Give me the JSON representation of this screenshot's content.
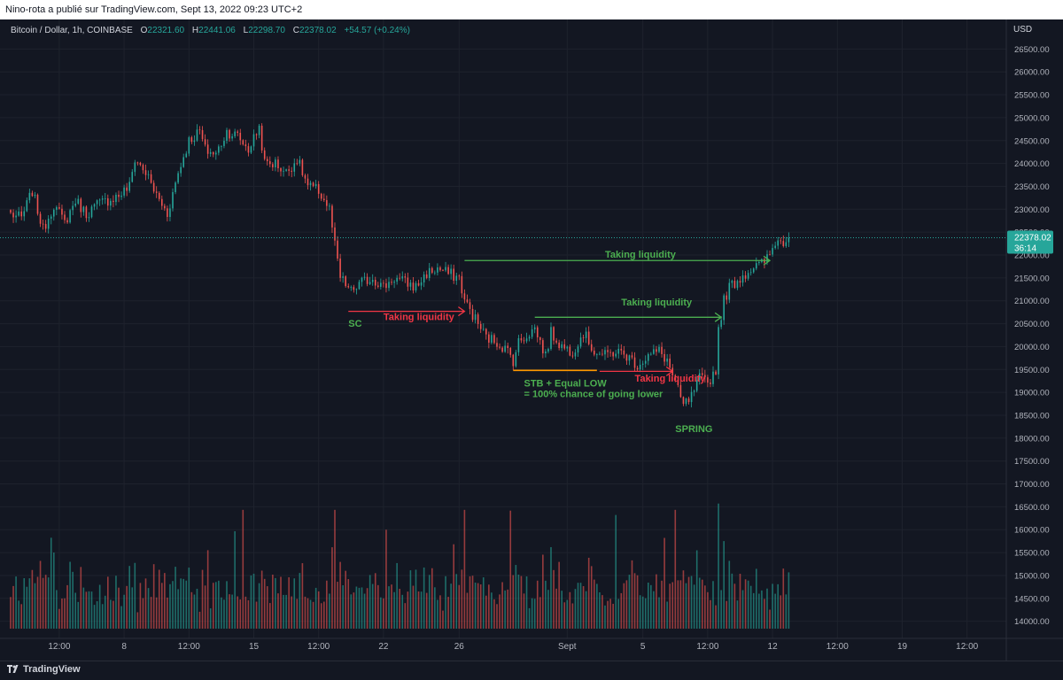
{
  "header": {
    "publisher": "Nino-rota a publié sur TradingView.com, Sept 13, 2022 09:23 UTC+2"
  },
  "symbol": {
    "name": "Bitcoin / Dollar, 1h, COINBASE",
    "open_label": "O",
    "open": "22321.60",
    "high_label": "H",
    "high": "22441.06",
    "low_label": "L",
    "low": "22298.70",
    "close_label": "C",
    "close": "22378.02",
    "change": "+54.57 (+0.24%)"
  },
  "price_tag": {
    "price": "22378.02",
    "countdown": "36:14"
  },
  "footer": {
    "brand": "TradingView"
  },
  "colors": {
    "up": "#26a69a",
    "down": "#ef5350",
    "green_ann": "#4caf50",
    "red_ann": "#f23645",
    "orange": "#ff9800",
    "bg": "#131722"
  },
  "chart_data": {
    "type": "candlestick",
    "currency_label": "USD",
    "ylim": [
      13800,
      26700
    ],
    "y_ticks": [
      14000,
      14500,
      15000,
      15500,
      16000,
      16500,
      17000,
      17500,
      18000,
      18500,
      19000,
      19500,
      20000,
      20500,
      21000,
      21500,
      22000,
      22500,
      23000,
      23500,
      24000,
      24500,
      25000,
      25500,
      26000,
      26500
    ],
    "y_tick_labels": [
      "14000.00",
      "14500.00",
      "15000.00",
      "15500.00",
      "16000.00",
      "16500.00",
      "17000.00",
      "17500.00",
      "18000.00",
      "18500.00",
      "19000.00",
      "19500.00",
      "20000.00",
      "20500.00",
      "21000.00",
      "21500.00",
      "22000.00",
      "22500.00",
      "23000.00",
      "23500.00",
      "24000.00",
      "24500.00",
      "25000.00",
      "25500.00",
      "26000.00",
      "26500.00"
    ],
    "x_ticks": [
      {
        "label": "12:00",
        "bar": 18
      },
      {
        "label": "8",
        "bar": 42
      },
      {
        "label": "12:00",
        "bar": 66
      },
      {
        "label": "15",
        "bar": 90
      },
      {
        "label": "12:00",
        "bar": 114
      },
      {
        "label": "22",
        "bar": 138
      },
      {
        "label": "26",
        "bar": 166
      },
      {
        "label": "Sept",
        "bar": 206
      },
      {
        "label": "5",
        "bar": 234
      },
      {
        "label": "12:00",
        "bar": 258
      },
      {
        "label": "12",
        "bar": 282
      },
      {
        "label": "12:00",
        "bar": 306
      },
      {
        "label": "19",
        "bar": 330
      },
      {
        "label": "12:00",
        "bar": 354
      }
    ],
    "anchors": [
      [
        0,
        22900
      ],
      [
        4,
        22800
      ],
      [
        8,
        23400
      ],
      [
        12,
        22550
      ],
      [
        16,
        23100
      ],
      [
        20,
        22700
      ],
      [
        24,
        23200
      ],
      [
        28,
        22900
      ],
      [
        32,
        23100
      ],
      [
        36,
        23200
      ],
      [
        40,
        23300
      ],
      [
        44,
        23500
      ],
      [
        46,
        24100
      ],
      [
        50,
        23800
      ],
      [
        54,
        23300
      ],
      [
        58,
        22900
      ],
      [
        62,
        23800
      ],
      [
        66,
        24500
      ],
      [
        70,
        24700
      ],
      [
        72,
        24300
      ],
      [
        76,
        24200
      ],
      [
        80,
        24700
      ],
      [
        84,
        24600
      ],
      [
        88,
        24300
      ],
      [
        92,
        24800
      ],
      [
        94,
        24000
      ],
      [
        98,
        24000
      ],
      [
        102,
        23800
      ],
      [
        106,
        24100
      ],
      [
        110,
        23500
      ],
      [
        114,
        23400
      ],
      [
        118,
        23000
      ],
      [
        120,
        22200
      ],
      [
        122,
        21500
      ],
      [
        126,
        21200
      ],
      [
        130,
        21400
      ],
      [
        134,
        21500
      ],
      [
        138,
        21300
      ],
      [
        142,
        21500
      ],
      [
        146,
        21400
      ],
      [
        150,
        21300
      ],
      [
        154,
        21600
      ],
      [
        158,
        21700
      ],
      [
        162,
        21600
      ],
      [
        166,
        21500
      ],
      [
        168,
        21000
      ],
      [
        172,
        20600
      ],
      [
        176,
        20200
      ],
      [
        180,
        20100
      ],
      [
        184,
        19900
      ],
      [
        186,
        19700
      ],
      [
        188,
        20100
      ],
      [
        192,
        20300
      ],
      [
        194,
        20400
      ],
      [
        196,
        20100
      ],
      [
        198,
        19800
      ],
      [
        200,
        20300
      ],
      [
        204,
        20000
      ],
      [
        208,
        19900
      ],
      [
        212,
        20300
      ],
      [
        216,
        19900
      ],
      [
        220,
        19800
      ],
      [
        224,
        19900
      ],
      [
        228,
        19800
      ],
      [
        232,
        19600
      ],
      [
        236,
        19800
      ],
      [
        240,
        19900
      ],
      [
        243,
        19700
      ],
      [
        246,
        19200
      ],
      [
        249,
        18700
      ],
      [
        252,
        18900
      ],
      [
        255,
        19300
      ],
      [
        258,
        19200
      ],
      [
        261,
        19500
      ],
      [
        262,
        20400
      ],
      [
        264,
        21000
      ],
      [
        266,
        21300
      ],
      [
        270,
        21500
      ],
      [
        274,
        21700
      ],
      [
        278,
        21800
      ],
      [
        281,
        22000
      ],
      [
        283,
        22300
      ],
      [
        286,
        22300
      ],
      [
        288,
        22378
      ]
    ],
    "last_bar": 288,
    "last_price": 22378.02,
    "volume_range": [
      0,
      6000
    ]
  },
  "annotations": [
    {
      "name": "sc-label",
      "text": "SC",
      "bar": 125,
      "price": 20430,
      "color": "green_ann"
    },
    {
      "name": "taking-liquidity-1",
      "text": "Taking liquidity",
      "bar": 138,
      "price": 20580,
      "color": "red_ann"
    },
    {
      "name": "taking-liquidity-2",
      "text": "Taking liquidity",
      "bar": 220,
      "price": 21940,
      "color": "green_ann"
    },
    {
      "name": "taking-liquidity-3",
      "text": "Taking liquidity",
      "bar": 226,
      "price": 20900,
      "color": "green_ann"
    },
    {
      "name": "taking-liquidity-4",
      "text": "Taking liquidity",
      "bar": 231,
      "price": 19230,
      "color": "red_ann"
    },
    {
      "name": "stb-label",
      "text": "STB + Equal LOW",
      "bar": 190,
      "price": 19130,
      "color": "green_ann"
    },
    {
      "name": "chance-label",
      "text": "= 100% chance of going lower",
      "bar": 190,
      "price": 18900,
      "color": "green_ann"
    },
    {
      "name": "spring-label",
      "text": "SPRING",
      "bar": 246,
      "price": 18130,
      "color": "green_ann"
    }
  ],
  "arrows": [
    {
      "name": "arrow-red-1",
      "from": [
        125,
        20770
      ],
      "to": [
        168,
        20770
      ],
      "color": "red_ann"
    },
    {
      "name": "arrow-green-1",
      "from": [
        168,
        21880
      ],
      "to": [
        281,
        21880
      ],
      "color": "green_ann"
    },
    {
      "name": "arrow-green-2",
      "from": [
        194,
        20640
      ],
      "to": [
        263,
        20640
      ],
      "color": "green_ann"
    },
    {
      "name": "arrow-red-2",
      "from": [
        218,
        19460
      ],
      "to": [
        245,
        19460
      ],
      "color": "red_ann"
    }
  ],
  "orange_line": {
    "from": [
      186,
      19480
    ],
    "to": [
      217,
      19480
    ]
  }
}
